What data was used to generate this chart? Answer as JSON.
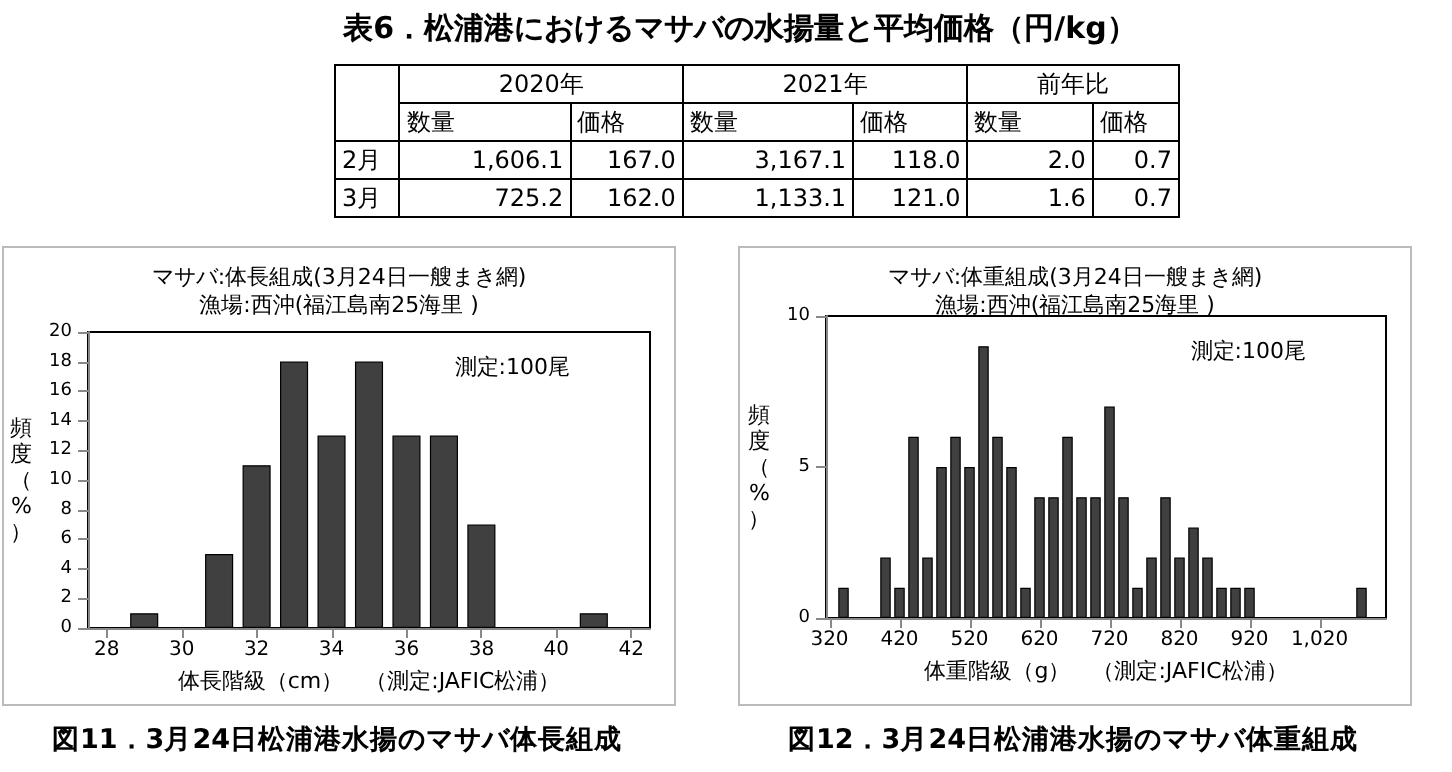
{
  "chart_data": [
    {
      "type": "other",
      "title": "表6．松浦港におけるマサバの水揚量と平均価格（円/kg）",
      "annotations": [
        "2020年",
        "2021年",
        "前年比"
      ],
      "categories": [
        "数量",
        "価格",
        "数量",
        "価格",
        "数量",
        "価格"
      ],
      "y_categories": [
        "2月",
        "3月"
      ],
      "cell_labels": [
        [
          "1,606.1",
          "167.0",
          "3,167.1",
          "118.0",
          "2.0",
          "0.7"
        ],
        [
          "725.2",
          "162.0",
          "1,133.1",
          "121.0",
          "1.6",
          "0.7"
        ]
      ]
    },
    {
      "type": "bar",
      "title": "マサバ:体長組成(3月24日一艘まき網)",
      "subtitle": "漁場:西沖(福江島南25海里 )",
      "xlabel": "体長階級（cm）　（測定:JAFIC松浦）",
      "ylabel": "頻度（%）",
      "annotations": [
        "測定:100尾",
        "図11．3月24日松浦港水揚のマサバ体長組成"
      ],
      "color": "#404040",
      "x": [
        29,
        31,
        32,
        33,
        34,
        35,
        36,
        37,
        38,
        41
      ],
      "values": [
        1,
        5,
        11,
        18,
        13,
        18,
        13,
        13,
        7,
        1
      ],
      "xlim": [
        27.5,
        42.5
      ],
      "xticks": [
        28,
        30,
        32,
        34,
        36,
        38,
        40,
        42
      ],
      "ylim": [
        0,
        20
      ],
      "yticks": [
        0,
        2,
        4,
        6,
        8,
        10,
        12,
        14,
        16,
        18,
        20
      ]
    },
    {
      "type": "bar",
      "title": "マサバ:体重組成(3月24日一艘まき網)",
      "subtitle": "漁場:西沖(福江島南25海里 )",
      "xlabel": "体重階級（g）　（測定:JAFIC松浦）",
      "ylabel": "頻度（%）",
      "annotations": [
        "測定:100尾",
        "図12．3月24日松浦港水揚のマサバ体重組成"
      ],
      "color": "#404040",
      "x": [
        340,
        400,
        420,
        440,
        460,
        480,
        500,
        520,
        540,
        560,
        580,
        600,
        620,
        640,
        660,
        680,
        700,
        720,
        740,
        760,
        780,
        800,
        820,
        840,
        860,
        880,
        900,
        920,
        1080
      ],
      "values": [
        1,
        2,
        1,
        6,
        2,
        5,
        6,
        5,
        9,
        6,
        5,
        1,
        4,
        4,
        6,
        4,
        4,
        7,
        4,
        1,
        2,
        4,
        2,
        3,
        2,
        1,
        1,
        1,
        1
      ],
      "xlim": [
        315,
        1115
      ],
      "xticks": [
        320,
        420,
        520,
        620,
        720,
        820,
        920,
        {
          "value": 1020,
          "label": "1,020"
        }
      ],
      "ylim": [
        0,
        10
      ],
      "yticks": [
        0,
        5,
        10
      ]
    }
  ]
}
